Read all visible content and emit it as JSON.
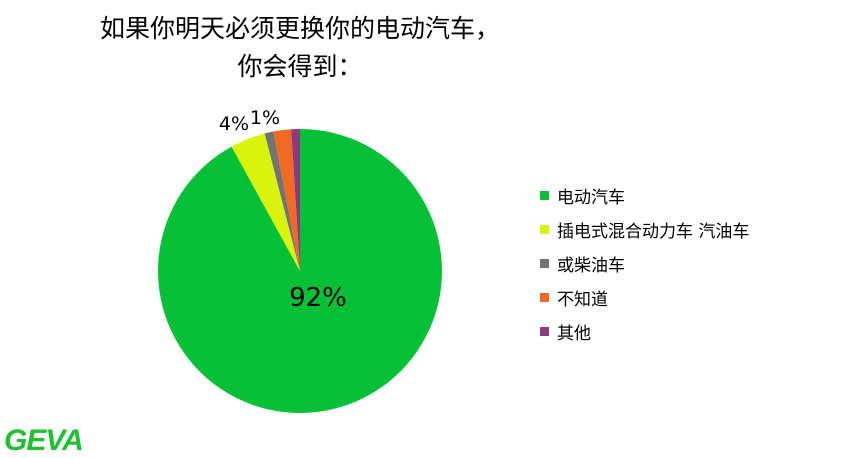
{
  "chart_data": {
    "type": "pie",
    "title_lines": [
      "如果你明天必须更换你的电动汽车，",
      "你会得到："
    ],
    "categories": [
      "电动汽车",
      "插电式混合动力车 汽油车",
      "或柴油车",
      "不知道",
      "其他"
    ],
    "values": [
      92,
      4,
      1,
      2,
      1
    ],
    "data_labels": [
      "92%",
      "4%",
      "1%",
      "",
      ""
    ],
    "colors": [
      "#06c035",
      "#d8f40c",
      "#737373",
      "#f06a22",
      "#8e3a80"
    ],
    "legend": "right"
  },
  "logo": "GEVA"
}
